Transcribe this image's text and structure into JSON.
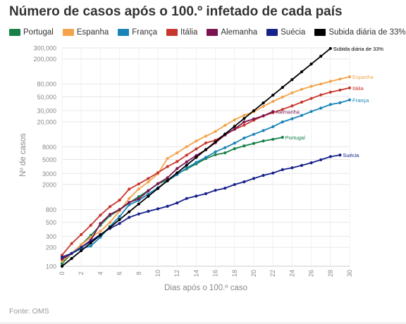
{
  "chart_data": {
    "type": "line",
    "title": "Número de casos após o 100.º infetado de cada país",
    "xlabel": "Dias após o 100.º caso",
    "ylabel": "Nº de casos",
    "yscale": "log",
    "xlim": [
      0,
      30
    ],
    "ylim": [
      100,
      300000
    ],
    "grid": true,
    "legend_position": "top",
    "x_ticks": [
      "0",
      "2",
      "4",
      "6",
      "8",
      "10",
      "12",
      "14",
      "16",
      "18",
      "20",
      "22",
      "24",
      "26",
      "28",
      "30"
    ],
    "y_ticks": [
      {
        "value": 100,
        "label": "100"
      },
      {
        "value": 200,
        "label": "200"
      },
      {
        "value": 300,
        "label": "300"
      },
      {
        "value": 500,
        "label": "500"
      },
      {
        "value": 800,
        "label": "800"
      },
      {
        "value": 2000,
        "label": "2000"
      },
      {
        "value": 3000,
        "label": "3000"
      },
      {
        "value": 5000,
        "label": "5000"
      },
      {
        "value": 8000,
        "label": "8000"
      },
      {
        "value": 20000,
        "label": "20,000"
      },
      {
        "value": 30000,
        "label": "30,000"
      },
      {
        "value": 50000,
        "label": "50,000"
      },
      {
        "value": 80000,
        "label": "80,000"
      },
      {
        "value": 200000,
        "label": "200,000"
      },
      {
        "value": 300000,
        "label": "300,000"
      }
    ],
    "series": [
      {
        "name": "Portugal",
        "color": "#178048",
        "end_label": "Portugal",
        "x": [
          0,
          1,
          2,
          3,
          4,
          5,
          6,
          7,
          8,
          9,
          10,
          11,
          12,
          13,
          14,
          15,
          16,
          17,
          18,
          19,
          20,
          21,
          22,
          23
        ],
        "y": [
          110,
          160,
          220,
          310,
          450,
          640,
          790,
          1020,
          1280,
          1600,
          2060,
          2360,
          3000,
          3540,
          4270,
          5170,
          5960,
          6400,
          7440,
          8250,
          9030,
          9890,
          10500,
          11300
        ]
      },
      {
        "name": "Espanha",
        "color": "#f4a34b",
        "end_label": "Espanha",
        "x": [
          0,
          1,
          2,
          3,
          4,
          5,
          6,
          7,
          8,
          9,
          10,
          11,
          12,
          13,
          14,
          15,
          16,
          17,
          18,
          19,
          20,
          21,
          22,
          23,
          24,
          25,
          26,
          27,
          28,
          29,
          30
        ],
        "y": [
          120,
          160,
          220,
          290,
          360,
          500,
          760,
          1200,
          1700,
          2200,
          2970,
          5200,
          6400,
          8000,
          9900,
          11800,
          14000,
          17500,
          21500,
          25400,
          28800,
          35100,
          42100,
          49500,
          57800,
          65700,
          73200,
          80000,
          87900,
          95900,
          104000
        ]
      },
      {
        "name": "França",
        "color": "#1a84b8",
        "end_label": "França",
        "x": [
          0,
          1,
          2,
          3,
          4,
          5,
          6,
          7,
          8,
          9,
          10,
          11,
          12,
          13,
          14,
          15,
          16,
          17,
          18,
          19,
          20,
          21,
          22,
          23,
          24,
          25,
          26,
          27,
          28,
          29,
          30
        ],
        "y": [
          130,
          160,
          190,
          210,
          290,
          430,
          620,
          950,
          1120,
          1410,
          1780,
          2280,
          2880,
          3660,
          4500,
          5420,
          6630,
          7730,
          9130,
          10990,
          12610,
          14460,
          16690,
          19860,
          22300,
          25230,
          29150,
          32960,
          37580,
          40170,
          44550
        ]
      },
      {
        "name": "Itália",
        "color": "#c8372d",
        "end_label": "Itália",
        "x": [
          0,
          1,
          2,
          3,
          4,
          5,
          6,
          7,
          8,
          9,
          10,
          11,
          12,
          13,
          14,
          15,
          16,
          17,
          18,
          19,
          20,
          21,
          22,
          23,
          24,
          25,
          26,
          27,
          28,
          29,
          30
        ],
        "y": [
          150,
          230,
          320,
          450,
          650,
          890,
          1130,
          1690,
          2040,
          2500,
          3090,
          3860,
          4640,
          5880,
          7380,
          9170,
          10150,
          12460,
          15110,
          17660,
          21160,
          24750,
          27980,
          31500,
          35710,
          41040,
          47020,
          53580,
          59140,
          63930,
          69180
        ]
      },
      {
        "name": "Alemanha",
        "color": "#7a1450",
        "end_label": "Alemanha",
        "x": [
          0,
          1,
          2,
          3,
          4,
          5,
          6,
          7,
          8,
          9,
          10,
          11,
          12,
          13,
          14,
          15,
          16,
          17,
          18,
          19,
          20,
          21,
          22
        ],
        "y": [
          130,
          160,
          200,
          260,
          480,
          670,
          800,
          1040,
          1180,
          1590,
          2070,
          2560,
          3590,
          4590,
          5800,
          7160,
          9250,
          12330,
          15300,
          19850,
          22200,
          24870,
          29060
        ]
      },
      {
        "name": "Suécia",
        "color": "#16218a",
        "end_label": "Suécia",
        "x": [
          0,
          1,
          2,
          3,
          4,
          5,
          6,
          7,
          8,
          9,
          10,
          11,
          12,
          13,
          14,
          15,
          16,
          17,
          18,
          19,
          20,
          21,
          22,
          23,
          24,
          25,
          26,
          27,
          28,
          29
        ],
        "y": [
          140,
          160,
          200,
          250,
          320,
          400,
          480,
          600,
          680,
          750,
          820,
          900,
          1020,
          1200,
          1310,
          1430,
          1620,
          1750,
          2000,
          2210,
          2500,
          2800,
          3050,
          3450,
          3700,
          4030,
          4440,
          4950,
          5560,
          5900
        ]
      },
      {
        "name": "Subida diária de 33%",
        "color": "#000000",
        "end_label": "Subida diária de 33%",
        "x": [
          0,
          1,
          2,
          3,
          4,
          5,
          6,
          7,
          8,
          9,
          10,
          11,
          12,
          13,
          14,
          15,
          16,
          17,
          18,
          19,
          20,
          21,
          22,
          23,
          24,
          25,
          26,
          27,
          28
        ],
        "y": [
          100,
          133,
          177,
          235,
          313,
          416,
          553,
          736,
          979,
          1302,
          1731,
          2303,
          3062,
          4073,
          5417,
          7205,
          9582,
          12744,
          16950,
          22543,
          29982,
          39876,
          53035,
          70537,
          93814,
          124773,
          165948,
          220711,
          293546
        ]
      }
    ]
  },
  "source": "Fonte: OMS"
}
